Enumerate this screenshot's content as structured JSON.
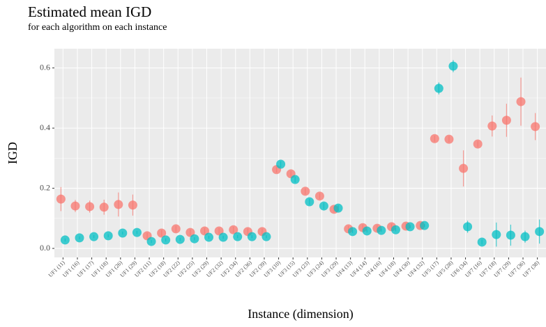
{
  "chart_data": {
    "type": "point-errorbar",
    "title": "Estimated mean IGD",
    "subtitle": "for each algorithm on each instance",
    "x_label": "Instance (dimension)",
    "y_label": "IGD",
    "categories": [
      "UF1 (11)",
      "UF1 (16)",
      "UF1 (17)",
      "UF1 (18)",
      "UF1 (26)",
      "UF1 (29)",
      "UF2 (11)",
      "UF2 (18)",
      "UF2 (22)",
      "UF2 (25)",
      "UF2 (29)",
      "UF2 (32)",
      "UF2 (34)",
      "UF2 (36)",
      "UF2 (39)",
      "UF3 (10)",
      "UF3 (15)",
      "UF3 (23)",
      "UF3 (24)",
      "UF3 (29)",
      "UF4 (13)",
      "UF4 (14)",
      "UF4 (16)",
      "UF4 (18)",
      "UF4 (30)",
      "UF4 (32)",
      "UF5 (17)",
      "UF5 (28)",
      "UF6 (34)",
      "UF7 (16)",
      "UF7 (18)",
      "UF7 (29)",
      "UF7 (36)",
      "UF7 (38)"
    ],
    "series": [
      {
        "color": "#F8766D",
        "values": [
          0.164,
          0.141,
          0.139,
          0.137,
          0.146,
          0.144,
          0.042,
          0.051,
          0.065,
          0.053,
          0.058,
          0.058,
          0.062,
          0.056,
          0.056,
          0.262,
          0.248,
          0.19,
          0.174,
          0.13,
          0.065,
          0.069,
          0.067,
          0.072,
          0.074,
          0.076,
          0.365,
          0.363,
          0.266,
          0.347,
          0.407,
          0.426,
          0.488,
          0.405
        ],
        "errors": [
          0.04,
          0.02,
          0.02,
          0.025,
          0.04,
          0.035,
          0.01,
          0.01,
          0.01,
          0.01,
          0.01,
          0.01,
          0.01,
          0.01,
          0.01,
          0.01,
          0.01,
          0.01,
          0.01,
          0.01,
          0.01,
          0.01,
          0.01,
          0.01,
          0.01,
          0.01,
          0.01,
          0.01,
          0.06,
          0.01,
          0.035,
          0.055,
          0.08,
          0.045
        ]
      },
      {
        "color": "#00BFC4",
        "values": [
          0.028,
          0.035,
          0.039,
          0.042,
          0.051,
          0.053,
          0.023,
          0.028,
          0.03,
          0.032,
          0.037,
          0.037,
          0.039,
          0.039,
          0.039,
          0.28,
          0.229,
          0.155,
          0.141,
          0.134,
          0.056,
          0.058,
          0.06,
          0.062,
          0.072,
          0.076,
          0.532,
          0.606,
          0.072,
          0.021,
          0.046,
          0.044,
          0.039,
          0.056
        ],
        "errors": [
          0.005,
          0.005,
          0.005,
          0.005,
          0.005,
          0.005,
          0.005,
          0.005,
          0.005,
          0.005,
          0.005,
          0.005,
          0.005,
          0.005,
          0.005,
          0.01,
          0.01,
          0.01,
          0.01,
          0.01,
          0.005,
          0.005,
          0.005,
          0.005,
          0.005,
          0.005,
          0.02,
          0.02,
          0.02,
          0.008,
          0.04,
          0.035,
          0.02,
          0.04
        ]
      }
    ],
    "ylim": [
      -0.03,
      0.664
    ],
    "yticks": [
      {
        "value": 0,
        "label": "0.0"
      },
      0.2,
      0.4,
      0.6
    ],
    "grid": true
  }
}
